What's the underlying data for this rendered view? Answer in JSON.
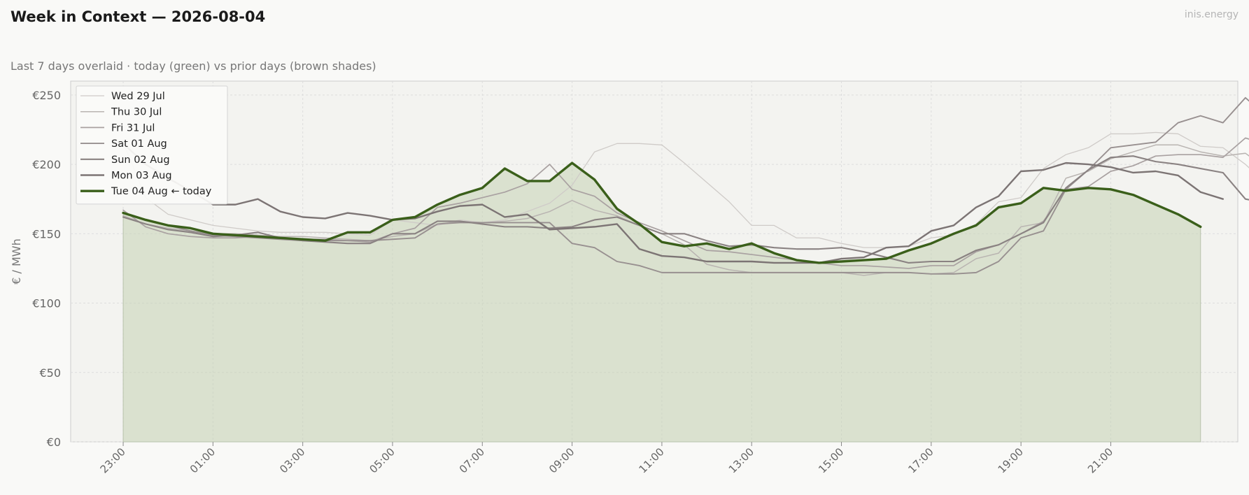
{
  "header": {
    "title": "Week in Context — 2026-08-04",
    "subtitle": "Last 7 days overlaid  ·  today (green) vs prior days (brown shades)",
    "brand": "inis.energy"
  },
  "chart_data": {
    "type": "line",
    "title": "Week in Context — 2026-08-04",
    "subtitle": "Last 7 days overlaid  ·  today (green) vs prior days (brown shades)",
    "xlabel": "",
    "ylabel": "€ / MWh",
    "ylim": [
      0,
      260
    ],
    "y_ticks": [
      0,
      50,
      100,
      150,
      200,
      250
    ],
    "y_tick_labels": [
      "€0",
      "€50",
      "€100",
      "€150",
      "€200",
      "€250"
    ],
    "x_tick_labels": [
      "23:00",
      "01:00",
      "03:00",
      "05:00",
      "07:00",
      "09:00",
      "11:00",
      "13:00",
      "15:00",
      "17:00",
      "19:00",
      "21:00"
    ],
    "x_tick_hours": [
      0,
      2,
      4,
      6,
      8,
      10,
      12,
      14,
      16,
      18,
      20,
      22
    ],
    "x_range_hours": [
      -1.17,
      24.83
    ],
    "x_step_hours": 0.5,
    "x_axis_start_clock": "23:00",
    "grid": true,
    "legend_position": "top-left",
    "today_fill": true,
    "colors": {
      "today": "#3a5f1a",
      "today_fill": "#c5d2b4",
      "grid": "#dddddd",
      "plot_bg": "#f3f3f0"
    },
    "series": [
      {
        "name": "Wed 29 Jul",
        "color": "#cfcbc8",
        "width": 1.3,
        "values": [
          216,
          176,
          164,
          160,
          156,
          154,
          152,
          151,
          151,
          151,
          150,
          149,
          160,
          158,
          156,
          160,
          158,
          160,
          166,
          172,
          185,
          209,
          215,
          215,
          214,
          201,
          187,
          173,
          156,
          156,
          147,
          147,
          143,
          140,
          140,
          141,
          147,
          149,
          157,
          173,
          176,
          197,
          207,
          212,
          222,
          222,
          223,
          222,
          213,
          212,
          200,
          185
        ]
      },
      {
        "name": "Thu 30 Jul",
        "color": "#b9b4b1",
        "width": 1.5,
        "values": [
          163,
          157,
          154,
          152,
          150,
          150,
          149,
          148,
          148,
          147,
          146,
          145,
          148,
          150,
          157,
          159,
          158,
          159,
          161,
          166,
          174,
          167,
          163,
          156,
          150,
          142,
          128,
          124,
          122,
          122,
          122,
          122,
          122,
          120,
          122,
          122,
          121,
          122,
          132,
          136,
          155,
          158,
          190,
          195,
          204,
          209,
          214,
          214,
          209,
          206,
          208,
          196
        ]
      },
      {
        "name": "Fri 31 Jul",
        "color": "#a9a1a1",
        "width": 1.7,
        "values": [
          167,
          155,
          150,
          148,
          147,
          147,
          148,
          147,
          146,
          146,
          145,
          144,
          150,
          154,
          169,
          172,
          176,
          180,
          186,
          200,
          182,
          177,
          165,
          158,
          152,
          145,
          138,
          137,
          135,
          133,
          131,
          129,
          127,
          127,
          126,
          125,
          127,
          127,
          137,
          142,
          150,
          159,
          182,
          184,
          195,
          199,
          206,
          207,
          207,
          205,
          219,
          214
        ]
      },
      {
        "name": "Sat 01 Aug",
        "color": "#989090",
        "width": 1.9,
        "values": [
          165,
          160,
          156,
          152,
          149,
          148,
          147,
          146,
          145,
          145,
          145,
          145,
          146,
          147,
          157,
          158,
          158,
          158,
          158,
          158,
          143,
          140,
          130,
          127,
          122,
          122,
          122,
          122,
          122,
          122,
          122,
          122,
          122,
          122,
          122,
          122,
          121,
          121,
          122,
          130,
          147,
          152,
          182,
          196,
          212,
          214,
          216,
          230,
          235,
          230,
          248,
          234
        ]
      },
      {
        "name": "Sun 02 Aug",
        "color": "#8a8282",
        "width": 2.1,
        "values": [
          162,
          157,
          153,
          151,
          148,
          149,
          151,
          147,
          145,
          144,
          143,
          143,
          150,
          150,
          159,
          159,
          157,
          155,
          155,
          154,
          155,
          160,
          162,
          156,
          150,
          150,
          145,
          141,
          142,
          140,
          139,
          139,
          140,
          137,
          133,
          129,
          130,
          130,
          138,
          142,
          150,
          158,
          183,
          196,
          205,
          206,
          202,
          200,
          197,
          194,
          175,
          172
        ]
      },
      {
        "name": "Mon 03 Aug",
        "color": "#7c7474",
        "width": 2.4,
        "values": [
          215,
          200,
          190,
          181,
          171,
          171,
          175,
          166,
          162,
          161,
          165,
          163,
          160,
          161,
          166,
          170,
          171,
          162,
          164,
          153,
          154,
          155,
          157,
          139,
          134,
          133,
          130,
          130,
          130,
          129,
          129,
          129,
          132,
          133,
          140,
          141,
          152,
          156,
          169,
          177,
          195,
          196,
          201,
          200,
          198,
          194,
          195,
          192,
          180,
          175
        ]
      },
      {
        "name": "Tue 04 Aug",
        "suffix": "← today",
        "color": "#3a5f1a",
        "width": 3.4,
        "is_today": true,
        "values": [
          165,
          160,
          156,
          154,
          150,
          149,
          148,
          147,
          146,
          145,
          151,
          151,
          160,
          162,
          171,
          178,
          183,
          197,
          188,
          188,
          201,
          189,
          168,
          157,
          144,
          141,
          143,
          139,
          143,
          136,
          131,
          129,
          130,
          131,
          132,
          138,
          143,
          150,
          156,
          169,
          172,
          183,
          181,
          183,
          182,
          178,
          171,
          164,
          155
        ]
      }
    ]
  }
}
